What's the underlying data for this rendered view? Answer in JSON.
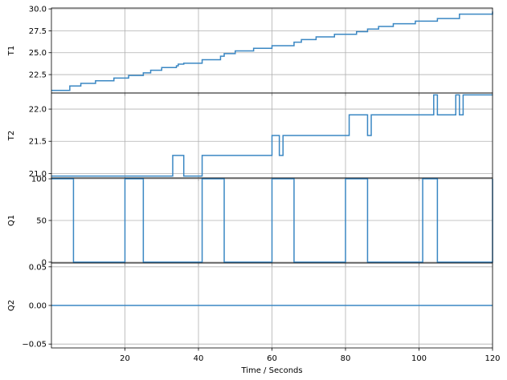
{
  "chart_data": [
    {
      "type": "line",
      "ylabel": "T1",
      "xlim": [
        0,
        120
      ],
      "ylim": [
        20.4,
        30.1
      ],
      "xticks": [
        20,
        40,
        60,
        80,
        100,
        120
      ],
      "yticks": [
        22.5,
        25.0,
        27.5,
        30.0
      ],
      "ytick_labels": [
        "22.5",
        "25.0",
        "27.5",
        "30.0"
      ],
      "grid": true,
      "color": "#3a87c3",
      "step": true,
      "series": [
        {
          "x": [
            0,
            5,
            8,
            12,
            17,
            21,
            25,
            27,
            30,
            34,
            34.5,
            36,
            41,
            46,
            47,
            50,
            55,
            60,
            66,
            68,
            72,
            77,
            83,
            86,
            89,
            93,
            99,
            105,
            111,
            120
          ],
          "y": [
            20.7,
            21.2,
            21.5,
            21.8,
            22.1,
            22.4,
            22.7,
            23.0,
            23.3,
            23.5,
            23.7,
            23.8,
            24.2,
            24.6,
            24.9,
            25.2,
            25.5,
            25.8,
            26.2,
            26.5,
            26.8,
            27.1,
            27.4,
            27.7,
            28.0,
            28.3,
            28.6,
            28.9,
            29.4,
            29.7
          ]
        }
      ]
    },
    {
      "type": "line",
      "ylabel": "T2",
      "xlim": [
        0,
        120
      ],
      "ylim": [
        20.93,
        22.25
      ],
      "xticks": [
        20,
        40,
        60,
        80,
        100,
        120
      ],
      "yticks": [
        21.0,
        21.5,
        22.0
      ],
      "ytick_labels": [
        "21.0",
        "21.5",
        "22.0"
      ],
      "grid": true,
      "color": "#3a87c3",
      "step": true,
      "series": [
        {
          "x": [
            0,
            33,
            36,
            41,
            60,
            62,
            63,
            81,
            86,
            87,
            104,
            105,
            110,
            111,
            112,
            120
          ],
          "y": [
            20.96,
            21.28,
            20.96,
            21.28,
            21.59,
            21.28,
            21.59,
            21.91,
            21.59,
            21.91,
            22.22,
            21.91,
            22.22,
            21.91,
            22.22,
            22.22
          ]
        }
      ]
    },
    {
      "type": "line",
      "ylabel": "Q1",
      "xlim": [
        0,
        120
      ],
      "ylim": [
        -1,
        101
      ],
      "xticks": [
        20,
        40,
        60,
        80,
        100,
        120
      ],
      "yticks": [
        0,
        50,
        100
      ],
      "ytick_labels": [
        "0",
        "50",
        "100"
      ],
      "grid": true,
      "color": "#3a87c3",
      "step": true,
      "series": [
        {
          "x": [
            0,
            6,
            20,
            25,
            41,
            47,
            60,
            66,
            80,
            86,
            101,
            105,
            120
          ],
          "y": [
            100,
            0,
            100,
            0,
            100,
            0,
            100,
            0,
            100,
            0,
            100,
            0,
            100
          ]
        }
      ]
    },
    {
      "type": "line",
      "ylabel": "Q2",
      "xlabel": "Time / Seconds",
      "xlim": [
        0,
        120
      ],
      "ylim": [
        -0.055,
        0.055
      ],
      "xticks": [
        20,
        40,
        60,
        80,
        100,
        120
      ],
      "xtick_labels": [
        "20",
        "40",
        "60",
        "80",
        "100",
        "120"
      ],
      "yticks": [
        -0.05,
        0.0,
        0.05
      ],
      "ytick_labels": [
        "−0.05",
        "0.00",
        "0.05"
      ],
      "grid": true,
      "color": "#3a87c3",
      "step": true,
      "series": [
        {
          "x": [
            0,
            120
          ],
          "y": [
            0,
            0
          ]
        }
      ]
    }
  ]
}
